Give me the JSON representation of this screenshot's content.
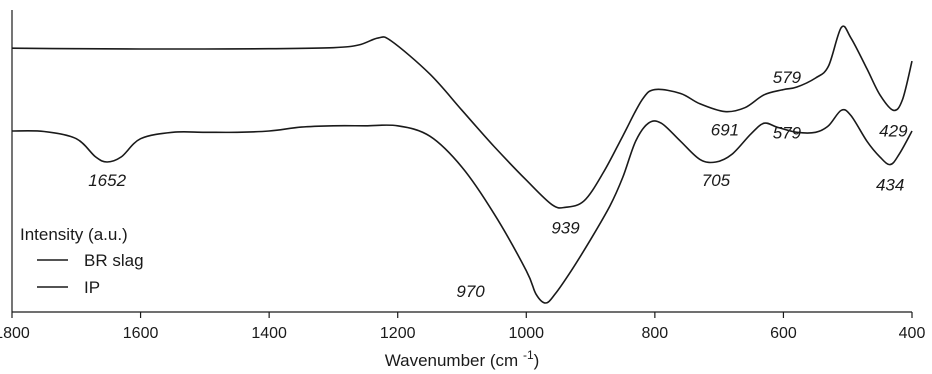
{
  "chart_data": {
    "type": "line",
    "xlabel_main": "Wavenumber (cm",
    "xlabel_sup": "-1",
    "xlabel_close": ")",
    "ylabel": "Intensity (a.u.)",
    "xlim": [
      1800,
      400
    ],
    "x_reversed": true,
    "x_ticks": [
      "1800",
      "1600",
      "1400",
      "1200",
      "1000",
      "800",
      "600",
      "400"
    ],
    "legend": {
      "placement": "bottom-left",
      "entries": [
        "BR slag",
        "IP"
      ]
    },
    "series": [
      {
        "name": "BR slag",
        "color": "#1a1a1a",
        "points": [
          [
            1800,
            0.86
          ],
          [
            1700,
            0.858
          ],
          [
            1600,
            0.857
          ],
          [
            1500,
            0.857
          ],
          [
            1400,
            0.858
          ],
          [
            1300,
            0.862
          ],
          [
            1260,
            0.873
          ],
          [
            1230,
            0.9
          ],
          [
            1210,
            0.888
          ],
          [
            1150,
            0.76
          ],
          [
            1100,
            0.62
          ],
          [
            1050,
            0.48
          ],
          [
            1000,
            0.35
          ],
          [
            960,
            0.255
          ],
          [
            939,
            0.245
          ],
          [
            910,
            0.27
          ],
          [
            880,
            0.38
          ],
          [
            850,
            0.52
          ],
          [
            820,
            0.66
          ],
          [
            800,
            0.7
          ],
          [
            760,
            0.685
          ],
          [
            730,
            0.645
          ],
          [
            691,
            0.615
          ],
          [
            660,
            0.63
          ],
          [
            630,
            0.68
          ],
          [
            600,
            0.7
          ],
          [
            579,
            0.71
          ],
          [
            550,
            0.745
          ],
          [
            530,
            0.79
          ],
          [
            510,
            0.94
          ],
          [
            495,
            0.9
          ],
          [
            470,
            0.78
          ],
          [
            450,
            0.68
          ],
          [
            429,
            0.62
          ],
          [
            415,
            0.66
          ],
          [
            400,
            0.81
          ]
        ]
      },
      {
        "name": "IP",
        "color": "#1a1a1a",
        "points": [
          [
            1800,
            0.54
          ],
          [
            1750,
            0.538
          ],
          [
            1700,
            0.51
          ],
          [
            1670,
            0.44
          ],
          [
            1652,
            0.42
          ],
          [
            1630,
            0.44
          ],
          [
            1600,
            0.51
          ],
          [
            1550,
            0.535
          ],
          [
            1500,
            0.535
          ],
          [
            1450,
            0.535
          ],
          [
            1400,
            0.54
          ],
          [
            1350,
            0.555
          ],
          [
            1300,
            0.56
          ],
          [
            1250,
            0.56
          ],
          [
            1200,
            0.56
          ],
          [
            1150,
            0.52
          ],
          [
            1100,
            0.4
          ],
          [
            1050,
            0.22
          ],
          [
            1000,
            0.0
          ],
          [
            985,
            -0.09
          ],
          [
            970,
            -0.125
          ],
          [
            955,
            -0.09
          ],
          [
            930,
            0.0
          ],
          [
            900,
            0.12
          ],
          [
            870,
            0.25
          ],
          [
            850,
            0.36
          ],
          [
            830,
            0.5
          ],
          [
            810,
            0.57
          ],
          [
            790,
            0.57
          ],
          [
            760,
            0.5
          ],
          [
            730,
            0.43
          ],
          [
            705,
            0.42
          ],
          [
            680,
            0.45
          ],
          [
            650,
            0.53
          ],
          [
            630,
            0.57
          ],
          [
            610,
            0.555
          ],
          [
            579,
            0.535
          ],
          [
            550,
            0.535
          ],
          [
            530,
            0.56
          ],
          [
            510,
            0.62
          ],
          [
            495,
            0.6
          ],
          [
            470,
            0.5
          ],
          [
            450,
            0.44
          ],
          [
            434,
            0.41
          ],
          [
            420,
            0.45
          ],
          [
            400,
            0.54
          ]
        ]
      }
    ],
    "annotations": [
      {
        "text": "1652",
        "x": 1652,
        "series": "IP"
      },
      {
        "text": "939",
        "x": 939,
        "series": "BR slag"
      },
      {
        "text": "691",
        "x": 691,
        "series": "BR slag"
      },
      {
        "text": "579",
        "x": 579,
        "series": "BR slag"
      },
      {
        "text": "429",
        "x": 429,
        "series": "BR slag"
      },
      {
        "text": "970",
        "x": 970,
        "series": "IP"
      },
      {
        "text": "705",
        "x": 705,
        "series": "IP"
      },
      {
        "text": "579",
        "x": 579,
        "series": "IP"
      },
      {
        "text": "434",
        "x": 434,
        "series": "IP"
      }
    ]
  }
}
